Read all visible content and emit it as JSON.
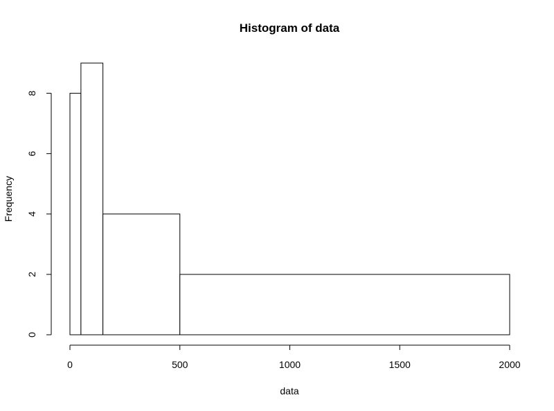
{
  "chart_data": {
    "type": "bar",
    "title": "Histogram of data",
    "xlabel": "data",
    "ylabel": "Frequency",
    "bins": [
      {
        "from": 0,
        "to": 50,
        "count": 8
      },
      {
        "from": 50,
        "to": 150,
        "count": 9
      },
      {
        "from": 150,
        "to": 500,
        "count": 4
      },
      {
        "from": 500,
        "to": 2000,
        "count": 2
      }
    ],
    "xlim": [
      0,
      2000
    ],
    "ylim": [
      0,
      9
    ],
    "x_ticks": [
      0,
      500,
      1000,
      1500,
      2000
    ],
    "y_ticks": [
      0,
      2,
      4,
      6,
      8
    ],
    "grid": false,
    "colors": {
      "bar_fill": "#ffffff",
      "bar_stroke": "#000000"
    }
  }
}
